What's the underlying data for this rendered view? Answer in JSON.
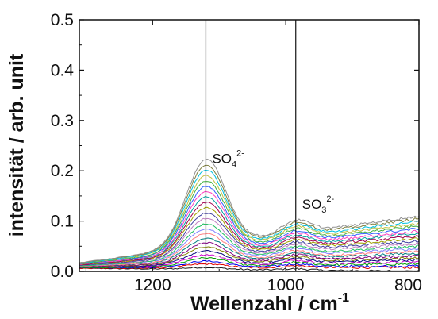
{
  "chart_data": {
    "type": "line",
    "xlabel": "Wellenzahl / cm",
    "xlabel_sup": "-1",
    "ylabel": "intensität / arb. unit",
    "xlim": [
      1310,
      800
    ],
    "ylim": [
      0,
      0.5
    ],
    "xticks": [
      1200,
      1000,
      800
    ],
    "yticks": [
      0.0,
      0.1,
      0.2,
      0.3,
      0.4,
      0.5
    ],
    "xtick_labels": [
      "1200",
      "1000",
      "800"
    ],
    "ytick_labels": [
      "0.0",
      "0.1",
      "0.2",
      "0.3",
      "0.4",
      "0.5"
    ],
    "grid": false,
    "vertical_lines": [
      1120,
      985
    ],
    "annotations": [
      {
        "base": "SO",
        "sub": "4",
        "sup": "2-",
        "x": 1120,
        "y": 0.215
      },
      {
        "base": "SO",
        "sub": "3",
        "sup": "2-",
        "x": 985,
        "y": 0.125
      }
    ],
    "series_colors": [
      "#1a1a1a",
      "#e00000",
      "#0000ee",
      "#00a000",
      "#cc00cc",
      "#0a0a80",
      "#808000",
      "#800080",
      "#008080",
      "#ff8080",
      "#8080ff",
      "#20c060",
      "#c080c0",
      "#4040a0",
      "#a0a000",
      "#a00050",
      "#00a0a0",
      "#ff40c0",
      "#3060ff",
      "#40b040",
      "#c0c040",
      "#00c0e0",
      "#808040",
      "#909090"
    ],
    "series": [
      {
        "peak": 0.01,
        "base_left": 0.006,
        "base_right": 0.0,
        "so3_hump": 0.003
      },
      {
        "peak": 0.014,
        "base_left": 0.006,
        "base_right": 0.008,
        "so3_hump": 0.004
      },
      {
        "peak": 0.019,
        "base_left": 0.007,
        "base_right": 0.011,
        "so3_hump": 0.005
      },
      {
        "peak": 0.024,
        "base_left": 0.007,
        "base_right": 0.015,
        "so3_hump": 0.006
      },
      {
        "peak": 0.029,
        "base_left": 0.008,
        "base_right": 0.019,
        "so3_hump": 0.007
      },
      {
        "peak": 0.035,
        "base_left": 0.008,
        "base_right": 0.023,
        "so3_hump": 0.008
      },
      {
        "peak": 0.042,
        "base_left": 0.009,
        "base_right": 0.027,
        "so3_hump": 0.009
      },
      {
        "peak": 0.049,
        "base_left": 0.009,
        "base_right": 0.031,
        "so3_hump": 0.01
      },
      {
        "peak": 0.056,
        "base_left": 0.01,
        "base_right": 0.036,
        "so3_hump": 0.011
      },
      {
        "peak": 0.064,
        "base_left": 0.01,
        "base_right": 0.04,
        "so3_hump": 0.012
      },
      {
        "peak": 0.072,
        "base_left": 0.011,
        "base_right": 0.045,
        "so3_hump": 0.013
      },
      {
        "peak": 0.08,
        "base_left": 0.011,
        "base_right": 0.05,
        "so3_hump": 0.014
      },
      {
        "peak": 0.089,
        "base_left": 0.012,
        "base_right": 0.055,
        "so3_hump": 0.015
      },
      {
        "peak": 0.098,
        "base_left": 0.012,
        "base_right": 0.06,
        "so3_hump": 0.016
      },
      {
        "peak": 0.107,
        "base_left": 0.013,
        "base_right": 0.065,
        "so3_hump": 0.017
      },
      {
        "peak": 0.116,
        "base_left": 0.013,
        "base_right": 0.07,
        "so3_hump": 0.018
      },
      {
        "peak": 0.125,
        "base_left": 0.014,
        "base_right": 0.075,
        "so3_hump": 0.019
      },
      {
        "peak": 0.134,
        "base_left": 0.014,
        "base_right": 0.08,
        "so3_hump": 0.02
      },
      {
        "peak": 0.143,
        "base_left": 0.015,
        "base_right": 0.085,
        "so3_hump": 0.021
      },
      {
        "peak": 0.152,
        "base_left": 0.015,
        "base_right": 0.09,
        "so3_hump": 0.022
      },
      {
        "peak": 0.161,
        "base_left": 0.016,
        "base_right": 0.095,
        "so3_hump": 0.023
      },
      {
        "peak": 0.17,
        "base_left": 0.016,
        "base_right": 0.1,
        "so3_hump": 0.024
      },
      {
        "peak": 0.179,
        "base_left": 0.017,
        "base_right": 0.105,
        "so3_hump": 0.025
      },
      {
        "peak": 0.188,
        "base_left": 0.017,
        "base_right": 0.11,
        "so3_hump": 0.026
      }
    ]
  }
}
